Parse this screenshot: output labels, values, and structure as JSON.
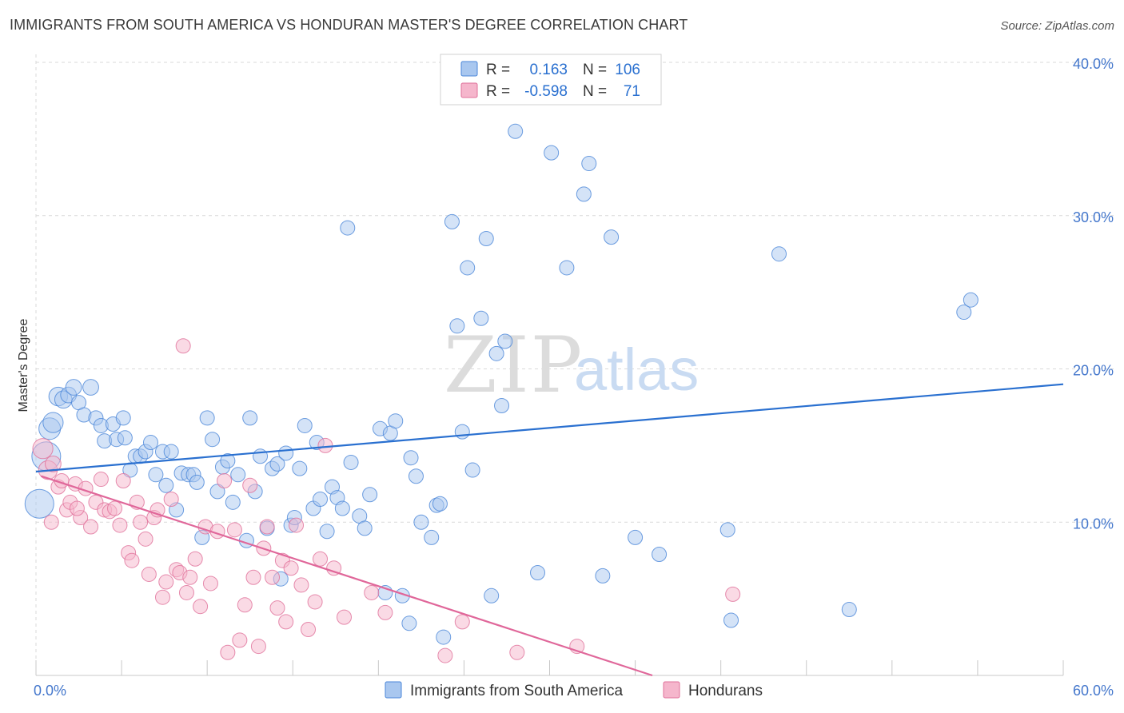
{
  "title": "IMMIGRANTS FROM SOUTH AMERICA VS HONDURAN MASTER'S DEGREE CORRELATION CHART",
  "source": "Source: ZipAtlas.com",
  "watermark": {
    "zip": "ZIP",
    "atlas": "atlas"
  },
  "colors": {
    "blue": "#4a86d8",
    "blue_fill": "#a9c7ef",
    "blue_line": "#2a70d0",
    "pink": "#e0709a",
    "pink_fill": "#f5b6cc",
    "pink_line": "#e0679a",
    "tick_text": "#4477cc",
    "grid": "#d9d9d9"
  },
  "legend": {
    "r_label": "R =",
    "n_label": "N =",
    "rows": [
      {
        "series": "blue",
        "r": "0.163",
        "n": "106"
      },
      {
        "series": "pink",
        "r": "-0.598",
        "n": "71"
      }
    ]
  },
  "chart_data": {
    "type": "scatter",
    "title": "IMMIGRANTS FROM SOUTH AMERICA VS HONDURAN MASTER'S DEGREE CORRELATION CHART",
    "xlabel": "",
    "ylabel": "Master's Degree",
    "xlim": [
      0,
      60
    ],
    "ylim": [
      0,
      40
    ],
    "x_tick_labels": [
      "0.0%",
      "60.0%"
    ],
    "y_ticks": [
      10,
      20,
      30,
      40
    ],
    "y_tick_labels": [
      "10.0%",
      "20.0%",
      "30.0%",
      "40.0%"
    ],
    "grid": true,
    "legend_position": "bottom",
    "series": [
      {
        "name": "Immigrants from South America",
        "color": "blue",
        "trendline": {
          "x": [
            0,
            60
          ],
          "y": [
            13.3,
            19.0
          ]
        },
        "points": [
          [
            0.2,
            11.2,
            2
          ],
          [
            0.6,
            14.3,
            2
          ],
          [
            0.8,
            16.1,
            1.5
          ],
          [
            1.0,
            16.5,
            1.4
          ],
          [
            1.3,
            18.2,
            1.3
          ],
          [
            1.6,
            18.0,
            1.2
          ],
          [
            1.9,
            18.3,
            1.1
          ],
          [
            2.2,
            18.8,
            1.1
          ],
          [
            2.5,
            17.8,
            1
          ],
          [
            2.8,
            17.0,
            1
          ],
          [
            3.2,
            18.8,
            1.1
          ],
          [
            3.5,
            16.8,
            1
          ],
          [
            3.8,
            16.3,
            1
          ],
          [
            4.0,
            15.3,
            1
          ],
          [
            4.5,
            16.4,
            1
          ],
          [
            4.7,
            15.4,
            1
          ],
          [
            5.1,
            16.8,
            1
          ],
          [
            5.2,
            15.5,
            1
          ],
          [
            5.5,
            13.4,
            1
          ],
          [
            5.8,
            14.3,
            1
          ],
          [
            6.1,
            14.3,
            1
          ],
          [
            6.4,
            14.6,
            1
          ],
          [
            6.7,
            15.2,
            1
          ],
          [
            7.0,
            13.1,
            1
          ],
          [
            7.4,
            14.6,
            1
          ],
          [
            7.6,
            12.4,
            1
          ],
          [
            7.9,
            14.6,
            1
          ],
          [
            8.2,
            10.8,
            1
          ],
          [
            8.5,
            13.2,
            1
          ],
          [
            8.9,
            13.1,
            1
          ],
          [
            9.2,
            13.1,
            1
          ],
          [
            9.4,
            12.6,
            1
          ],
          [
            9.7,
            9.0,
            1
          ],
          [
            10.0,
            16.8,
            1
          ],
          [
            10.3,
            15.4,
            1
          ],
          [
            10.6,
            12.0,
            1
          ],
          [
            10.9,
            13.6,
            1
          ],
          [
            11.2,
            14.0,
            1
          ],
          [
            11.5,
            11.3,
            1
          ],
          [
            11.8,
            13.1,
            1
          ],
          [
            12.3,
            8.8,
            1
          ],
          [
            12.5,
            16.8,
            1
          ],
          [
            12.8,
            12.0,
            1
          ],
          [
            13.1,
            14.3,
            1
          ],
          [
            13.5,
            9.6,
            1
          ],
          [
            13.8,
            13.5,
            1
          ],
          [
            14.1,
            13.8,
            1
          ],
          [
            14.3,
            6.3,
            1
          ],
          [
            14.6,
            14.5,
            1
          ],
          [
            14.9,
            9.8,
            1
          ],
          [
            15.1,
            10.3,
            1
          ],
          [
            15.4,
            13.5,
            1
          ],
          [
            15.7,
            16.3,
            1
          ],
          [
            16.2,
            10.9,
            1
          ],
          [
            16.4,
            15.2,
            1
          ],
          [
            16.6,
            11.5,
            1
          ],
          [
            17.0,
            9.4,
            1
          ],
          [
            17.3,
            12.3,
            1
          ],
          [
            17.6,
            11.6,
            1
          ],
          [
            17.9,
            10.9,
            1
          ],
          [
            18.2,
            29.2,
            1
          ],
          [
            18.4,
            13.9,
            1
          ],
          [
            18.9,
            10.4,
            1
          ],
          [
            19.2,
            9.6,
            1
          ],
          [
            19.5,
            11.8,
            1
          ],
          [
            20.1,
            16.1,
            1
          ],
          [
            20.4,
            5.4,
            1
          ],
          [
            20.7,
            15.8,
            1
          ],
          [
            21.0,
            16.6,
            1
          ],
          [
            21.4,
            5.2,
            1
          ],
          [
            21.8,
            3.4,
            1
          ],
          [
            21.9,
            14.2,
            1
          ],
          [
            22.2,
            13.0,
            1
          ],
          [
            22.5,
            10.0,
            1
          ],
          [
            23.1,
            9.0,
            1
          ],
          [
            23.4,
            11.1,
            1
          ],
          [
            23.6,
            11.2,
            1
          ],
          [
            23.8,
            2.5,
            1
          ],
          [
            24.3,
            29.6,
            1
          ],
          [
            24.6,
            22.8,
            1
          ],
          [
            24.9,
            15.9,
            1
          ],
          [
            25.2,
            26.6,
            1
          ],
          [
            25.5,
            13.4,
            1
          ],
          [
            26.0,
            23.3,
            1
          ],
          [
            26.3,
            28.5,
            1
          ],
          [
            26.6,
            5.2,
            1
          ],
          [
            26.9,
            21.0,
            1
          ],
          [
            27.2,
            17.6,
            1
          ],
          [
            27.4,
            21.8,
            1
          ],
          [
            28.0,
            35.5,
            1
          ],
          [
            29.3,
            6.7,
            1
          ],
          [
            30.1,
            34.1,
            1
          ],
          [
            31.0,
            26.6,
            1
          ],
          [
            32.0,
            31.4,
            1
          ],
          [
            32.3,
            33.4,
            1
          ],
          [
            33.1,
            6.5,
            1
          ],
          [
            33.6,
            28.6,
            1
          ],
          [
            35.0,
            9.0,
            1
          ],
          [
            36.4,
            7.9,
            1
          ],
          [
            40.4,
            9.5,
            1
          ],
          [
            40.6,
            3.6,
            1
          ],
          [
            43.4,
            27.5,
            1
          ],
          [
            47.5,
            4.3,
            1
          ],
          [
            54.2,
            23.7,
            1
          ],
          [
            54.6,
            24.5,
            1
          ]
        ]
      },
      {
        "name": "Hondurans",
        "color": "pink",
        "trendline": {
          "x": [
            0.3,
            36.0
          ],
          "y": [
            13.0,
            0.0
          ]
        },
        "points": [
          [
            0.4,
            14.8,
            1.4
          ],
          [
            0.7,
            13.4,
            1.3
          ],
          [
            1.0,
            13.8,
            1.1
          ],
          [
            1.3,
            12.3,
            1
          ],
          [
            1.5,
            12.7,
            1
          ],
          [
            1.8,
            10.8,
            1
          ],
          [
            2.0,
            11.3,
            1
          ],
          [
            2.3,
            12.5,
            1
          ],
          [
            2.6,
            10.3,
            1
          ],
          [
            2.9,
            12.2,
            1
          ],
          [
            3.2,
            9.7,
            1
          ],
          [
            3.5,
            11.3,
            1
          ],
          [
            3.8,
            12.8,
            1
          ],
          [
            4.0,
            10.8,
            1
          ],
          [
            4.3,
            10.7,
            1
          ],
          [
            4.6,
            10.9,
            1
          ],
          [
            4.9,
            9.8,
            1
          ],
          [
            5.1,
            12.7,
            1
          ],
          [
            5.4,
            8.0,
            1
          ],
          [
            5.6,
            7.5,
            1
          ],
          [
            5.9,
            11.3,
            1
          ],
          [
            6.1,
            10.0,
            1
          ],
          [
            6.4,
            8.9,
            1
          ],
          [
            6.6,
            6.6,
            1
          ],
          [
            6.9,
            10.3,
            1
          ],
          [
            7.1,
            10.8,
            1
          ],
          [
            7.4,
            5.1,
            1
          ],
          [
            7.6,
            6.1,
            1
          ],
          [
            7.9,
            11.5,
            1
          ],
          [
            8.2,
            6.9,
            1
          ],
          [
            8.4,
            6.7,
            1
          ],
          [
            8.6,
            21.5,
            1
          ],
          [
            8.8,
            5.4,
            1
          ],
          [
            9.0,
            6.4,
            1
          ],
          [
            9.3,
            7.6,
            1
          ],
          [
            9.6,
            4.5,
            1
          ],
          [
            9.9,
            9.7,
            1
          ],
          [
            10.2,
            6.0,
            1
          ],
          [
            10.6,
            9.4,
            1
          ],
          [
            11.0,
            12.7,
            1
          ],
          [
            11.2,
            1.5,
            1
          ],
          [
            11.6,
            9.5,
            1
          ],
          [
            11.9,
            2.3,
            1
          ],
          [
            12.2,
            4.6,
            1
          ],
          [
            12.5,
            12.4,
            1
          ],
          [
            12.7,
            6.4,
            1
          ],
          [
            13.0,
            1.9,
            1
          ],
          [
            13.3,
            8.3,
            1
          ],
          [
            13.5,
            9.7,
            1
          ],
          [
            13.8,
            6.4,
            1
          ],
          [
            14.1,
            4.4,
            1
          ],
          [
            14.4,
            7.5,
            1
          ],
          [
            14.6,
            3.5,
            1
          ],
          [
            14.9,
            7.0,
            1
          ],
          [
            15.2,
            9.8,
            1
          ],
          [
            15.5,
            5.9,
            1
          ],
          [
            15.9,
            3.0,
            1
          ],
          [
            16.3,
            4.8,
            1
          ],
          [
            16.6,
            7.6,
            1
          ],
          [
            16.9,
            15.0,
            1
          ],
          [
            17.4,
            7.0,
            1
          ],
          [
            18.0,
            3.8,
            1
          ],
          [
            19.6,
            5.4,
            1
          ],
          [
            20.4,
            4.1,
            1
          ],
          [
            23.9,
            1.3,
            1
          ],
          [
            24.9,
            3.5,
            1
          ],
          [
            28.1,
            1.5,
            1
          ],
          [
            31.6,
            1.9,
            1
          ],
          [
            40.7,
            5.3,
            1
          ],
          [
            0.9,
            10.0,
            1
          ],
          [
            2.4,
            10.9,
            1
          ]
        ]
      }
    ]
  },
  "bottom_legend": [
    {
      "series": "blue",
      "label": "Immigrants from South America"
    },
    {
      "series": "pink",
      "label": "Hondurans"
    }
  ]
}
